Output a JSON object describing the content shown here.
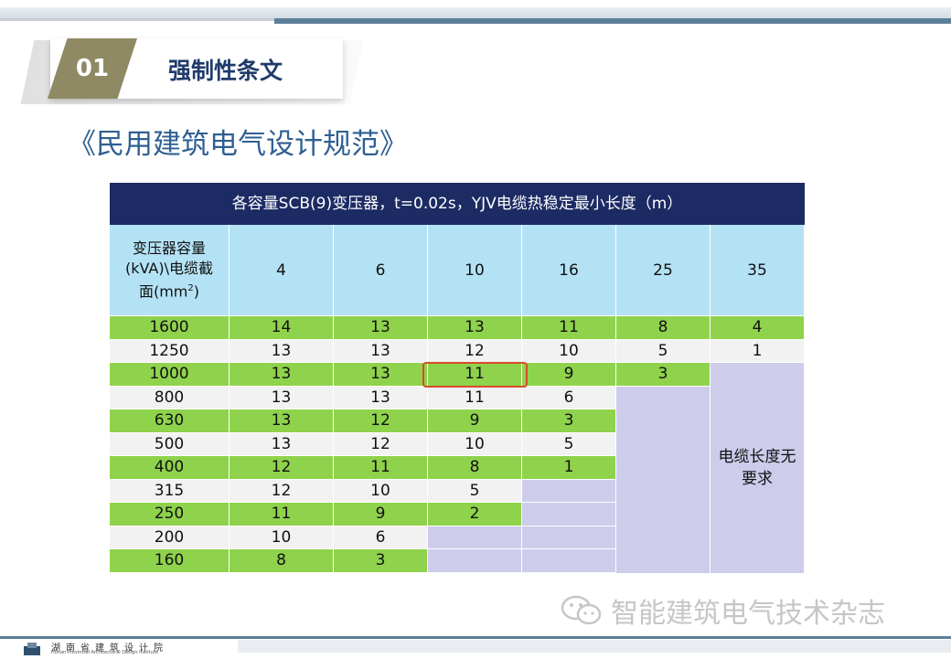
{
  "header": {
    "number": "01",
    "title": "强制性条文"
  },
  "main_title": "《民用建筑电气设计规范》",
  "table": {
    "caption": "各容量SCB(9)变压器，t=0.02s，YJV电缆热稳定最小长度（m）",
    "corner_header": {
      "line1": "变压器容量",
      "line2": "(kVA)\\电缆截",
      "line3_prefix": "面(mm",
      "line3_sup": "2",
      "line3_suffix": ")"
    },
    "columns": [
      "4",
      "6",
      "10",
      "16",
      "25",
      "35"
    ],
    "rows": [
      {
        "capacity": "1600",
        "values": [
          "14",
          "13",
          "13",
          "11",
          "8",
          "4"
        ]
      },
      {
        "capacity": "1250",
        "values": [
          "13",
          "13",
          "12",
          "10",
          "5",
          "1"
        ]
      },
      {
        "capacity": "1000",
        "values": [
          "13",
          "13",
          "11",
          "9",
          "3",
          ""
        ]
      },
      {
        "capacity": "800",
        "values": [
          "13",
          "13",
          "11",
          "6",
          "",
          ""
        ]
      },
      {
        "capacity": "630",
        "values": [
          "13",
          "12",
          "9",
          "3",
          "",
          ""
        ]
      },
      {
        "capacity": "500",
        "values": [
          "13",
          "12",
          "10",
          "5",
          "",
          ""
        ]
      },
      {
        "capacity": "400",
        "values": [
          "12",
          "11",
          "8",
          "1",
          "",
          ""
        ]
      },
      {
        "capacity": "315",
        "values": [
          "12",
          "10",
          "5",
          "",
          "",
          ""
        ]
      },
      {
        "capacity": "250",
        "values": [
          "11",
          "9",
          "2",
          "",
          "",
          ""
        ]
      },
      {
        "capacity": "200",
        "values": [
          "10",
          "6",
          "",
          "",
          "",
          ""
        ]
      },
      {
        "capacity": "160",
        "values": [
          "8",
          "3",
          "",
          "",
          "",
          ""
        ]
      }
    ],
    "no_requirement_note": "电缆长度无要求",
    "highlighted_cell": {
      "row": 2,
      "col": 2
    }
  },
  "watermark": {
    "text": "智能建筑电气技术杂志"
  },
  "footer": {
    "org_cn": "湖南省建筑设计院",
    "org_en": "Hunan Provincial Architectural Design Institute"
  },
  "colors": {
    "caption_bg": "#1c2b64",
    "header_bg": "#b4e2f5",
    "row_green": "#8fd24c",
    "row_white": "#f2f2f2",
    "empty_purple": "#cdcceb",
    "highlight": "#d84b2a",
    "title_blue": "#2f5f92"
  }
}
